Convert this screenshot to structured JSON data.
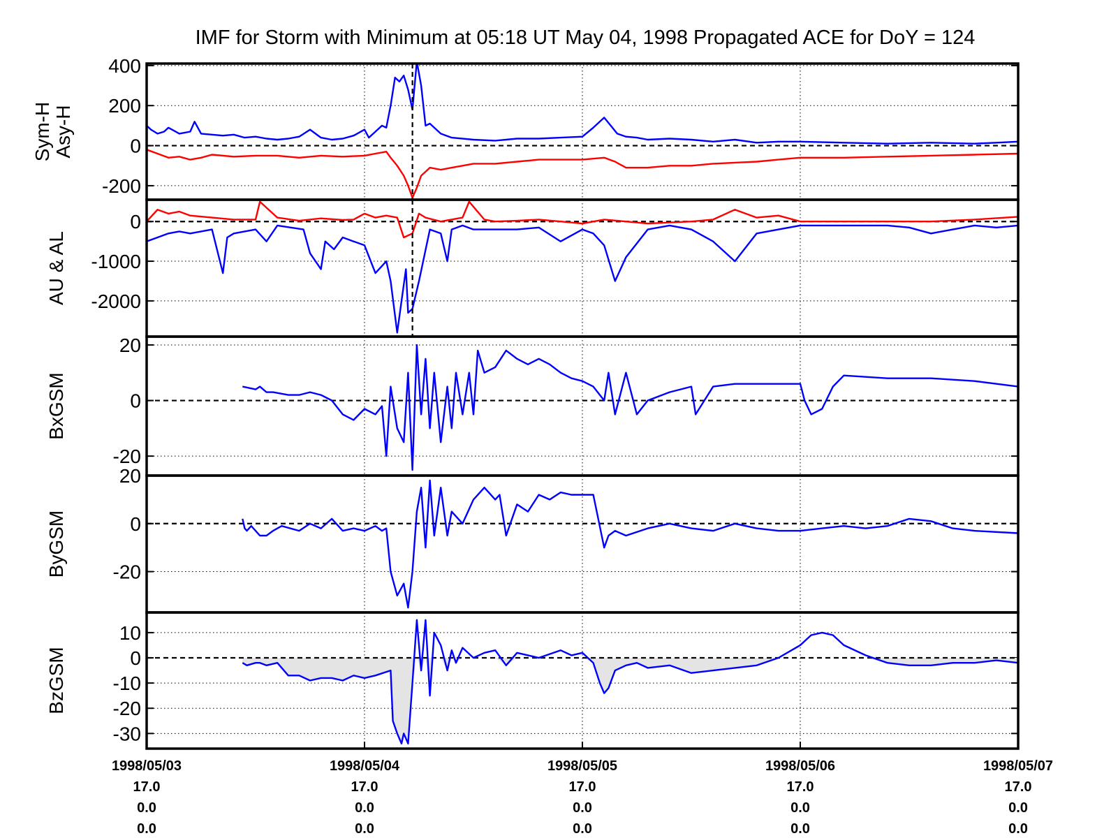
{
  "chart_data": [
    {
      "panel": "symh_asyh",
      "type": "line",
      "title": "IMF for Storm with Minimum at 05:18 UT May 04, 1998  Propagated ACE for DoY = 124",
      "ylabel_lines": [
        "Sym-H",
        "Asy-H"
      ],
      "ylim": [
        -270,
        410
      ],
      "yticks": [
        400,
        200,
        0,
        -200
      ],
      "ytick_labels": [
        "400",
        "200",
        "0",
        "-200"
      ],
      "grid": true,
      "zero_line": true,
      "event_marker_day": 1.22,
      "series": [
        {
          "color": "#0000ff",
          "x": [
            0,
            0.02,
            0.05,
            0.08,
            0.1,
            0.15,
            0.2,
            0.22,
            0.25,
            0.3,
            0.35,
            0.4,
            0.45,
            0.5,
            0.55,
            0.6,
            0.65,
            0.7,
            0.75,
            0.8,
            0.85,
            0.9,
            0.95,
            1.0,
            1.02,
            1.05,
            1.08,
            1.1,
            1.12,
            1.14,
            1.16,
            1.18,
            1.2,
            1.22,
            1.24,
            1.26,
            1.28,
            1.3,
            1.35,
            1.4,
            1.5,
            1.6,
            1.7,
            1.8,
            1.9,
            2.0,
            2.05,
            2.1,
            2.13,
            2.16,
            2.2,
            2.25,
            2.3,
            2.4,
            2.5,
            2.6,
            2.7,
            2.8,
            2.9,
            3.0,
            3.2,
            3.4,
            3.6,
            3.8,
            3.9,
            4.0
          ],
          "y": [
            100,
            80,
            60,
            70,
            90,
            60,
            70,
            120,
            60,
            55,
            50,
            55,
            40,
            45,
            35,
            30,
            35,
            45,
            80,
            40,
            30,
            35,
            50,
            80,
            40,
            70,
            100,
            90,
            200,
            340,
            320,
            350,
            280,
            180,
            420,
            300,
            100,
            110,
            60,
            40,
            30,
            25,
            35,
            35,
            40,
            45,
            90,
            140,
            100,
            60,
            45,
            40,
            30,
            35,
            30,
            20,
            30,
            15,
            20,
            20,
            15,
            10,
            15,
            10,
            15,
            20
          ]
        },
        {
          "color": "#ff0000",
          "x": [
            0,
            0.05,
            0.1,
            0.15,
            0.2,
            0.25,
            0.3,
            0.4,
            0.5,
            0.6,
            0.7,
            0.8,
            0.9,
            1.0,
            1.05,
            1.1,
            1.12,
            1.15,
            1.18,
            1.2,
            1.21,
            1.22,
            1.24,
            1.26,
            1.28,
            1.3,
            1.35,
            1.4,
            1.45,
            1.5,
            1.6,
            1.7,
            1.8,
            1.9,
            2.0,
            2.1,
            2.15,
            2.2,
            2.3,
            2.4,
            2.5,
            2.6,
            2.7,
            2.8,
            2.9,
            3.0,
            3.2,
            3.4,
            3.6,
            3.8,
            4.0
          ],
          "y": [
            -20,
            -40,
            -60,
            -55,
            -70,
            -60,
            -45,
            -55,
            -50,
            -50,
            -60,
            -50,
            -55,
            -50,
            -40,
            -30,
            -60,
            -100,
            -150,
            -200,
            -230,
            -260,
            -210,
            -150,
            -130,
            -110,
            -120,
            -110,
            -100,
            -90,
            -90,
            -80,
            -70,
            -70,
            -70,
            -60,
            -80,
            -110,
            -110,
            -100,
            -100,
            -90,
            -85,
            -80,
            -70,
            -60,
            -60,
            -55,
            -50,
            -45,
            -40
          ]
        }
      ]
    },
    {
      "panel": "au_al",
      "type": "line",
      "ylabel_lines": [
        "AU & AL"
      ],
      "ylim": [
        -2900,
        550
      ],
      "yticks": [
        0,
        -1000,
        -2000
      ],
      "ytick_labels": [
        "0",
        "-1000",
        "-2000"
      ],
      "grid": true,
      "zero_line": true,
      "event_marker_day": 1.22,
      "series": [
        {
          "color": "#ff0000",
          "x": [
            0,
            0.05,
            0.1,
            0.15,
            0.2,
            0.3,
            0.4,
            0.5,
            0.52,
            0.6,
            0.7,
            0.8,
            0.9,
            0.95,
            1.0,
            1.05,
            1.1,
            1.15,
            1.18,
            1.22,
            1.25,
            1.28,
            1.35,
            1.45,
            1.48,
            1.55,
            1.6,
            1.7,
            1.8,
            1.9,
            2.0,
            2.1,
            2.2,
            2.3,
            2.5,
            2.6,
            2.7,
            2.8,
            2.9,
            3.0,
            3.2,
            3.4,
            3.6,
            3.8,
            4.0
          ],
          "y": [
            0,
            300,
            200,
            250,
            150,
            100,
            50,
            50,
            500,
            100,
            20,
            80,
            40,
            50,
            200,
            100,
            150,
            100,
            -400,
            -300,
            200,
            100,
            0,
            100,
            500,
            50,
            0,
            20,
            50,
            0,
            -50,
            50,
            0,
            -50,
            0,
            50,
            300,
            100,
            150,
            0,
            0,
            0,
            0,
            50,
            120
          ]
        },
        {
          "color": "#0000ff",
          "x": [
            0,
            0.05,
            0.1,
            0.15,
            0.2,
            0.3,
            0.35,
            0.37,
            0.4,
            0.5,
            0.55,
            0.6,
            0.72,
            0.75,
            0.8,
            0.82,
            0.86,
            0.9,
            0.95,
            1.0,
            1.05,
            1.1,
            1.12,
            1.15,
            1.17,
            1.19,
            1.2,
            1.22,
            1.25,
            1.3,
            1.35,
            1.38,
            1.4,
            1.45,
            1.5,
            1.6,
            1.7,
            1.8,
            1.9,
            2.0,
            2.05,
            2.1,
            2.15,
            2.2,
            2.3,
            2.4,
            2.5,
            2.6,
            2.7,
            2.8,
            2.9,
            3.0,
            3.2,
            3.4,
            3.5,
            3.6,
            3.7,
            3.8,
            3.9,
            4.0
          ],
          "y": [
            -500,
            -400,
            -300,
            -250,
            -300,
            -200,
            -1300,
            -400,
            -300,
            -200,
            -500,
            -100,
            -200,
            -800,
            -1200,
            -500,
            -700,
            -400,
            -500,
            -600,
            -1300,
            -1000,
            -1500,
            -2800,
            -2000,
            -1200,
            -2300,
            -2200,
            -1500,
            -200,
            -300,
            -1000,
            -200,
            -100,
            -200,
            -200,
            -200,
            -150,
            -500,
            -200,
            -300,
            -600,
            -1500,
            -900,
            -200,
            -100,
            -200,
            -500,
            -1000,
            -300,
            -200,
            -100,
            -100,
            -100,
            -150,
            -300,
            -200,
            -100,
            -150,
            -100
          ]
        }
      ]
    },
    {
      "panel": "bx",
      "type": "line",
      "ylabel_lines": [
        "BxGSM"
      ],
      "ylim": [
        -27,
        23
      ],
      "yticks": [
        20,
        0,
        -20
      ],
      "ytick_labels": [
        "20",
        "0",
        "-20"
      ],
      "grid": true,
      "zero_line": true,
      "series": [
        {
          "color": "#0000ff",
          "x": [
            0.44,
            0.5,
            0.52,
            0.55,
            0.58,
            0.65,
            0.7,
            0.75,
            0.8,
            0.85,
            0.9,
            0.95,
            1.0,
            1.05,
            1.08,
            1.1,
            1.12,
            1.15,
            1.18,
            1.2,
            1.22,
            1.24,
            1.26,
            1.28,
            1.3,
            1.32,
            1.35,
            1.38,
            1.4,
            1.42,
            1.45,
            1.48,
            1.5,
            1.52,
            1.55,
            1.6,
            1.65,
            1.7,
            1.75,
            1.8,
            1.85,
            1.9,
            1.95,
            2.0,
            2.05,
            2.1,
            2.12,
            2.15,
            2.2,
            2.25,
            2.3,
            2.4,
            2.5,
            2.52,
            2.6,
            2.7,
            2.8,
            2.9,
            3.0,
            3.02,
            3.05,
            3.1,
            3.15,
            3.2,
            3.4,
            3.6,
            3.8,
            4.0
          ],
          "y": [
            5,
            4,
            5,
            3,
            3,
            2,
            2,
            3,
            2,
            0,
            -5,
            -7,
            -3,
            -5,
            -2,
            -20,
            5,
            -10,
            -15,
            10,
            -25,
            20,
            -5,
            15,
            -10,
            10,
            -15,
            5,
            -10,
            10,
            -5,
            10,
            -5,
            18,
            10,
            12,
            18,
            15,
            13,
            15,
            13,
            10,
            8,
            7,
            5,
            0,
            10,
            -5,
            10,
            -5,
            0,
            3,
            5,
            -5,
            5,
            6,
            6,
            6,
            6,
            0,
            -5,
            -3,
            5,
            9,
            8,
            8,
            7,
            5
          ]
        }
      ]
    },
    {
      "panel": "by",
      "type": "line",
      "ylabel_lines": [
        "ByGSM"
      ],
      "ylim": [
        -37,
        20
      ],
      "yticks": [
        20,
        0,
        -20
      ],
      "ytick_labels": [
        "20",
        "0",
        "-20"
      ],
      "grid": true,
      "zero_line": true,
      "series": [
        {
          "color": "#0000ff",
          "x": [
            0.44,
            0.45,
            0.46,
            0.48,
            0.5,
            0.52,
            0.55,
            0.58,
            0.62,
            0.7,
            0.75,
            0.8,
            0.85,
            0.9,
            0.95,
            1.0,
            1.05,
            1.08,
            1.1,
            1.12,
            1.15,
            1.18,
            1.2,
            1.22,
            1.24,
            1.26,
            1.28,
            1.3,
            1.32,
            1.35,
            1.38,
            1.4,
            1.45,
            1.5,
            1.55,
            1.6,
            1.62,
            1.65,
            1.7,
            1.75,
            1.8,
            1.85,
            1.9,
            1.95,
            2.0,
            2.05,
            2.1,
            2.12,
            2.15,
            2.2,
            2.3,
            2.4,
            2.5,
            2.6,
            2.7,
            2.8,
            2.9,
            3.0,
            3.1,
            3.2,
            3.3,
            3.4,
            3.5,
            3.6,
            3.7,
            3.8,
            4.0
          ],
          "y": [
            2,
            -2,
            -3,
            -1,
            -3,
            -5,
            -5,
            -3,
            -1,
            -3,
            0,
            -2,
            2,
            -3,
            -2,
            -3,
            -1,
            -3,
            -2,
            -20,
            -30,
            -25,
            -35,
            -20,
            5,
            15,
            -10,
            18,
            -5,
            15,
            -5,
            5,
            0,
            10,
            15,
            10,
            12,
            -5,
            8,
            5,
            12,
            10,
            13,
            12,
            12,
            12,
            -10,
            -5,
            -3,
            -5,
            -2,
            0,
            -2,
            -3,
            0,
            -2,
            -3,
            -3,
            -2,
            -1,
            -2,
            -1,
            2,
            1,
            -2,
            -3,
            -4
          ]
        }
      ]
    },
    {
      "panel": "bz",
      "type": "area",
      "ylabel_lines": [
        "BzGSM"
      ],
      "ylim": [
        -36,
        18
      ],
      "yticks": [
        10,
        0,
        -10,
        -20,
        -30
      ],
      "ytick_labels": [
        "10",
        "0",
        "-10",
        "-20",
        "-30"
      ],
      "grid": true,
      "zero_line": true,
      "fill_negative": true,
      "series": [
        {
          "color": "#0000ff",
          "x": [
            0.44,
            0.46,
            0.5,
            0.52,
            0.55,
            0.6,
            0.65,
            0.7,
            0.75,
            0.8,
            0.85,
            0.9,
            0.95,
            1.0,
            1.05,
            1.12,
            1.13,
            1.15,
            1.17,
            1.18,
            1.2,
            1.22,
            1.24,
            1.26,
            1.28,
            1.3,
            1.32,
            1.35,
            1.38,
            1.4,
            1.42,
            1.45,
            1.5,
            1.55,
            1.6,
            1.65,
            1.7,
            1.8,
            1.9,
            1.95,
            2.0,
            2.05,
            2.08,
            2.1,
            2.12,
            2.15,
            2.2,
            2.25,
            2.3,
            2.4,
            2.5,
            2.6,
            2.7,
            2.8,
            2.9,
            3.0,
            3.05,
            3.1,
            3.15,
            3.2,
            3.3,
            3.4,
            3.5,
            3.6,
            3.7,
            3.8,
            3.9,
            4.0
          ],
          "y": [
            -2,
            -3,
            -2,
            -2,
            -3,
            -2,
            -7,
            -7,
            -9,
            -8,
            -8,
            -9,
            -7,
            -8,
            -7,
            -5,
            -25,
            -30,
            -34,
            -30,
            -34,
            -10,
            15,
            -5,
            15,
            -15,
            10,
            5,
            -5,
            3,
            -2,
            4,
            0,
            2,
            3,
            -3,
            2,
            0,
            3,
            1,
            2,
            -2,
            -10,
            -14,
            -12,
            -5,
            -3,
            -2,
            -4,
            -3,
            -6,
            -5,
            -4,
            -3,
            0,
            5,
            9,
            10,
            9,
            5,
            1,
            -2,
            -3,
            -3,
            -2,
            -2,
            -1,
            -2
          ]
        }
      ]
    }
  ],
  "x_axis": {
    "range_days": [
      0,
      4
    ],
    "tick_days": [
      0,
      1,
      2,
      3,
      4
    ],
    "ticks": [
      {
        "lines": [
          "1998/05/03",
          "17.0",
          "0.0",
          "0.0"
        ]
      },
      {
        "lines": [
          "1998/05/04",
          "17.0",
          "0.0",
          "0.0"
        ]
      },
      {
        "lines": [
          "1998/05/05",
          "17.0",
          "0.0",
          "0.0"
        ]
      },
      {
        "lines": [
          "1998/05/06",
          "17.0",
          "0.0",
          "0.0"
        ]
      },
      {
        "lines": [
          "1998/05/07",
          "17.0",
          "0.0",
          "0.0"
        ]
      }
    ]
  }
}
